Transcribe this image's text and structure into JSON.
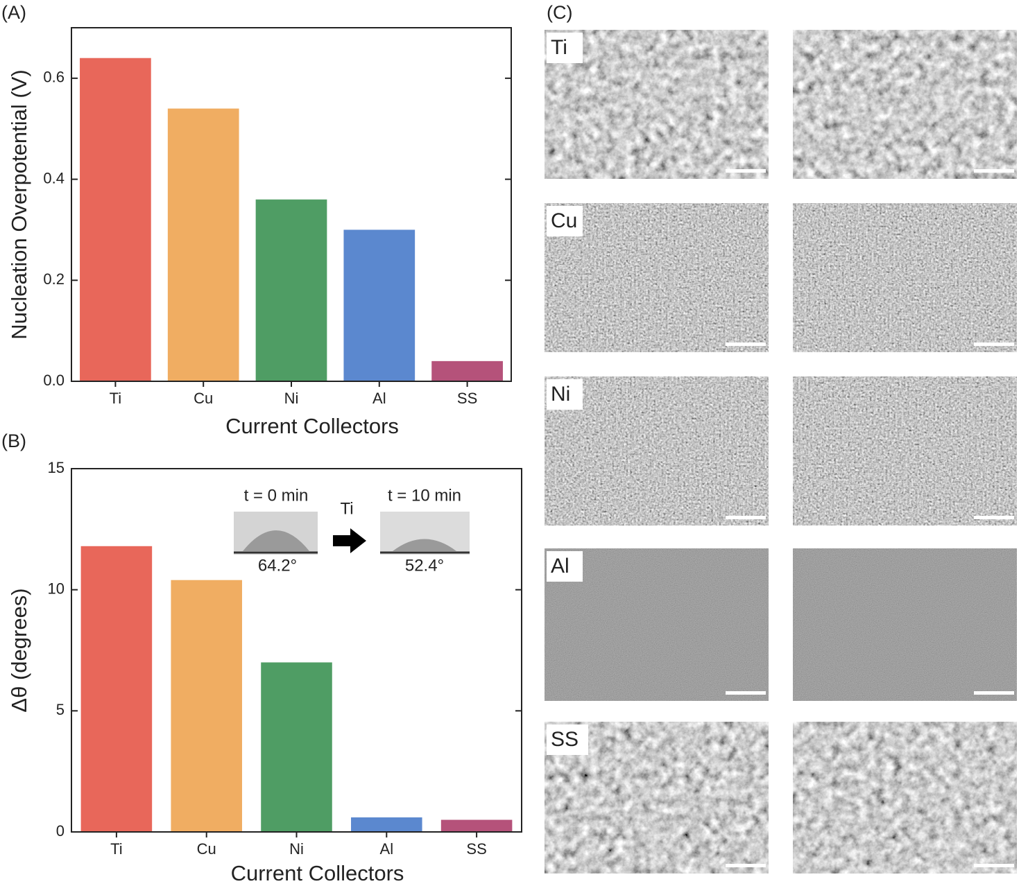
{
  "chart_data": [
    {
      "type": "bar",
      "label": "(A)",
      "x_label": "Current Collectors",
      "y_label": "Nucleation Overpotential (V)",
      "categories": [
        "Ti",
        "Cu",
        "Ni",
        "Al",
        "SS"
      ],
      "values": [
        0.64,
        0.54,
        0.36,
        0.3,
        0.04
      ],
      "colors": [
        "#e8675a",
        "#f0ad62",
        "#4f9d64",
        "#5b88cf",
        "#b5527a"
      ],
      "ylim": [
        0,
        0.7
      ],
      "yticks": [
        {
          "value": 0,
          "label": "0.0"
        },
        0.2,
        0.4,
        0.6
      ],
      "grid": false
    },
    {
      "type": "bar",
      "label": "(B)",
      "x_label": "Current Collectors",
      "y_label": "Δθ (degrees)",
      "categories": [
        "Ti",
        "Cu",
        "Ni",
        "Al",
        "SS"
      ],
      "values": [
        11.8,
        10.4,
        7.0,
        0.6,
        0.5
      ],
      "colors": [
        "#e8675a",
        "#f0ad62",
        "#4f9d64",
        "#5b88cf",
        "#b5527a"
      ],
      "ylim": [
        0,
        15
      ],
      "yticks": [
        0,
        5,
        10,
        15
      ],
      "grid": false,
      "annotations": [
        "t = 0 min",
        "Ti",
        "t = 10 min",
        "64.2°",
        "52.4°"
      ]
    }
  ],
  "sem_panel": {
    "label": "(C)",
    "rows": [
      "Ti",
      "Cu",
      "Ni",
      "Al",
      "SS"
    ]
  }
}
